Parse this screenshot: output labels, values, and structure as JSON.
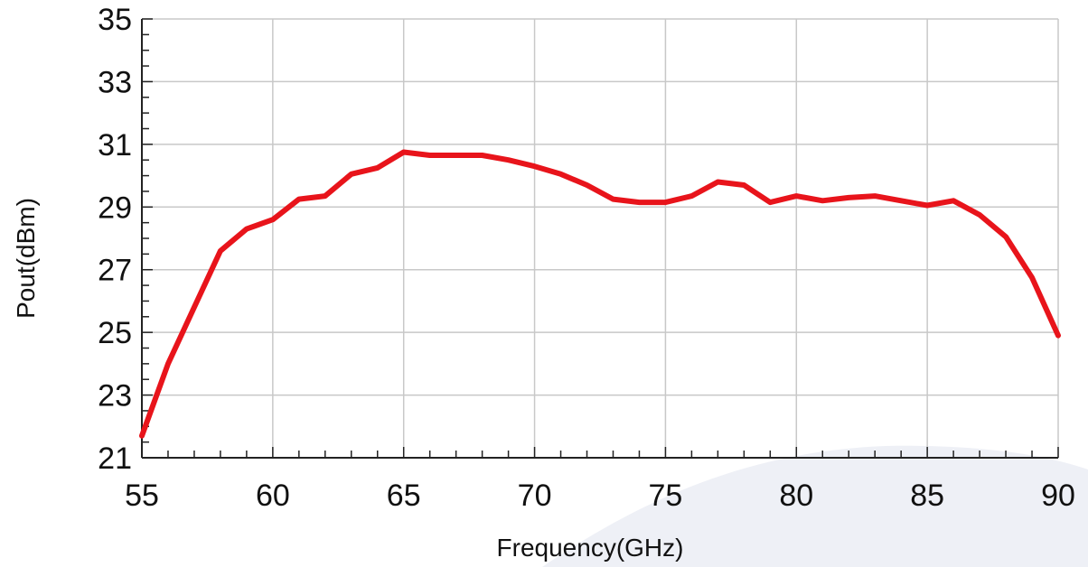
{
  "chart_data": {
    "type": "line",
    "title": "",
    "xlabel": "Frequency(GHz)",
    "ylabel": "Pout(dBm)",
    "xlim": [
      55,
      90
    ],
    "ylim": [
      21,
      35
    ],
    "xticks": [
      55,
      60,
      65,
      70,
      75,
      80,
      85,
      90
    ],
    "yticks": [
      21,
      23,
      25,
      27,
      29,
      31,
      33,
      35
    ],
    "grid": true,
    "colors": {
      "line": "#e8141b",
      "grid": "#c8c8c8",
      "axis": "#222222",
      "background_shape": "#eef0f6"
    },
    "series": [
      {
        "x": [
          55,
          56,
          57,
          58,
          59,
          60,
          61,
          62,
          63,
          64,
          65,
          66,
          67,
          68,
          69,
          70,
          71,
          72,
          73,
          74,
          75,
          76,
          77,
          78,
          79,
          80,
          81,
          82,
          83,
          84,
          85,
          86,
          87,
          88,
          89,
          90
        ],
        "y": [
          21.7,
          24.0,
          25.8,
          27.6,
          28.3,
          28.6,
          29.25,
          29.35,
          30.05,
          30.25,
          30.75,
          30.65,
          30.65,
          30.65,
          30.5,
          30.3,
          30.05,
          29.7,
          29.25,
          29.15,
          29.15,
          29.35,
          29.8,
          29.7,
          29.15,
          29.35,
          29.2,
          29.3,
          29.35,
          29.2,
          29.05,
          29.2,
          28.75,
          28.05,
          26.75,
          24.9
        ]
      }
    ]
  }
}
